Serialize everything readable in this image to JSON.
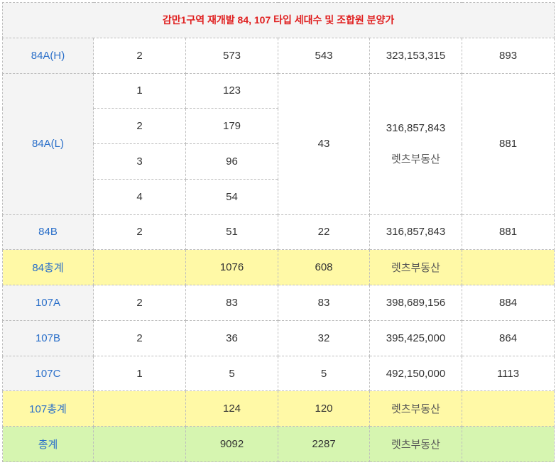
{
  "title": "감만1구역 재개발 84, 107 타입 세대수 및 조합원 분양가",
  "watermark": "렛츠부동산",
  "rows": {
    "h84ah": {
      "type": "84A(H)",
      "c1": "2",
      "c2": "573",
      "c3": "543",
      "c4": "323,153,315",
      "c5": "893"
    },
    "h84al": {
      "type": "84A(L)",
      "sub": [
        {
          "c1": "1",
          "c2": "123"
        },
        {
          "c1": "2",
          "c2": "179"
        },
        {
          "c1": "3",
          "c2": "96"
        },
        {
          "c1": "4",
          "c2": "54"
        }
      ],
      "c3": "43",
      "c4": "316,857,843",
      "c5": "881"
    },
    "h84b": {
      "type": "84B",
      "c1": "2",
      "c2": "51",
      "c3": "22",
      "c4": "316,857,843",
      "c5": "881"
    },
    "t84": {
      "type": "84총계",
      "c2": "1076",
      "c3": "608"
    },
    "h107a": {
      "type": "107A",
      "c1": "2",
      "c2": "83",
      "c3": "83",
      "c4": "398,689,156",
      "c5": "884"
    },
    "h107b": {
      "type": "107B",
      "c1": "2",
      "c2": "36",
      "c3": "32",
      "c4": "395,425,000",
      "c5": "864"
    },
    "h107c": {
      "type": "107C",
      "c1": "1",
      "c2": "5",
      "c3": "5",
      "c4": "492,150,000",
      "c5": "1113"
    },
    "t107": {
      "type": "107총계",
      "c2": "124",
      "c3": "120"
    },
    "total": {
      "type": "총계",
      "c2": "9092",
      "c3": "2287"
    }
  }
}
